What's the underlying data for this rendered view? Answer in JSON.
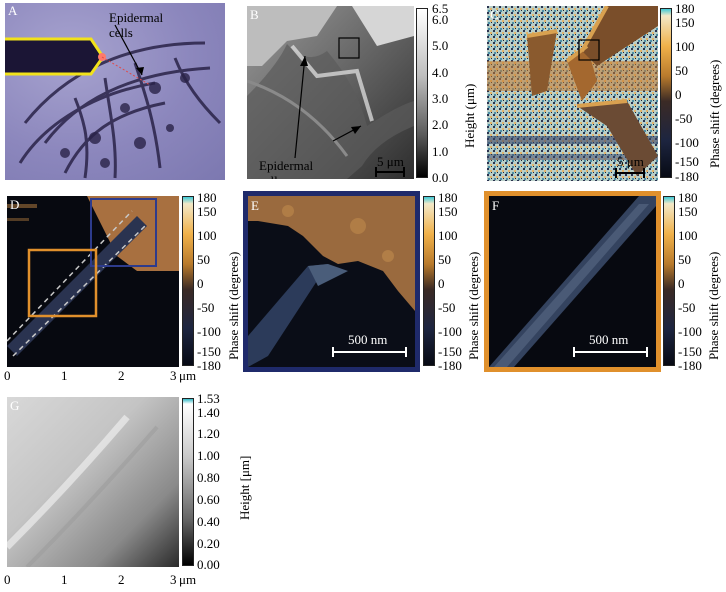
{
  "panels": {
    "A": {
      "label": "A",
      "annotation": "Epidermal\ncells"
    },
    "B": {
      "label": "B",
      "annotation": "Epidermal\ncells",
      "scale": "5 μm",
      "colorbar": {
        "title": "Height (μm)",
        "ticks": [
          "6.5",
          "6.0",
          "5.0",
          "4.0",
          "3.0",
          "2.0",
          "1.0",
          "0.0"
        ]
      }
    },
    "C": {
      "label": "C",
      "scale": "5 μm",
      "colorbar": {
        "title": "Phase shift (degrees)",
        "ticks": [
          "180",
          "150",
          "100",
          "50",
          "0",
          "-50",
          "-100",
          "-150",
          "-180"
        ]
      }
    },
    "D": {
      "label": "D",
      "colorbar": {
        "title": "Phase shift (degrees)",
        "ticks": [
          "180",
          "150",
          "100",
          "50",
          "0",
          "-50",
          "-100",
          "-150",
          "-180"
        ]
      },
      "xaxis": {
        "ticks": [
          "0",
          "1",
          "2",
          "3"
        ],
        "unit": "μm"
      }
    },
    "E": {
      "label": "E",
      "scale": "500 nm",
      "colorbar": {
        "title": "Phase shift (degrees)",
        "ticks": [
          "180",
          "150",
          "100",
          "50",
          "0",
          "-50",
          "-100",
          "-150",
          "-180"
        ]
      }
    },
    "F": {
      "label": "F",
      "scale": "500 nm",
      "colorbar": {
        "title": "Phase shift (degrees)",
        "ticks": [
          "180",
          "150",
          "100",
          "50",
          "0",
          "-50",
          "-100",
          "-150",
          "-180"
        ]
      }
    },
    "G": {
      "label": "G",
      "colorbar": {
        "title": "Height [μm]",
        "ticks": [
          "1.53",
          "1.40",
          "1.20",
          "1.00",
          "0.80",
          "0.60",
          "0.40",
          "0.20",
          "0.00"
        ]
      },
      "xaxis": {
        "ticks": [
          "0",
          "1",
          "2",
          "3"
        ],
        "unit": "μm"
      }
    }
  },
  "colors": {
    "navy_box": "#1f2a6b",
    "orange_box": "#e0902c",
    "yellow_outline": "#f2e21a"
  }
}
